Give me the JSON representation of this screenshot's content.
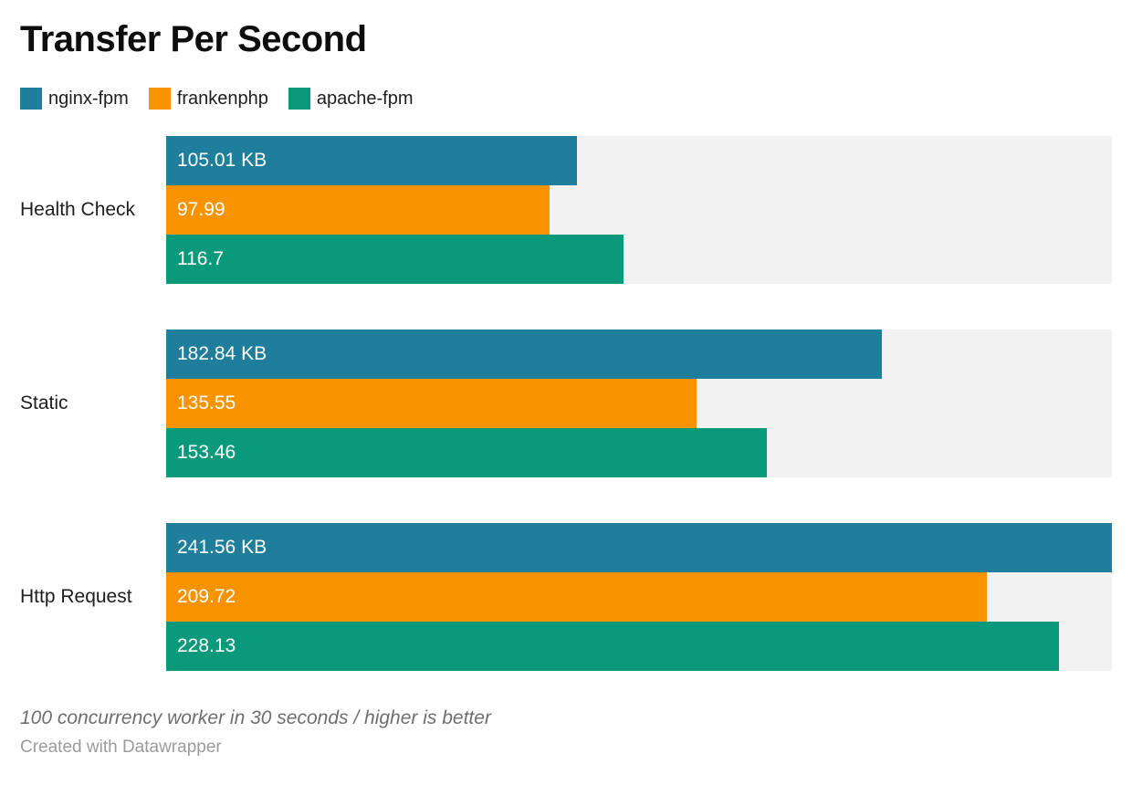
{
  "title": "Transfer Per Second",
  "legend": [
    {
      "label": "nginx-fpm",
      "color": "#1f7e9c"
    },
    {
      "label": "frankenphp",
      "color": "#f89300"
    },
    {
      "label": "apache-fpm",
      "color": "#0a9a7b"
    }
  ],
  "chart_data": {
    "type": "bar",
    "orientation": "horizontal",
    "grouped": true,
    "title": "Transfer Per Second",
    "categories": [
      "Health Check",
      "Static",
      "Http Request"
    ],
    "series": [
      {
        "name": "nginx-fpm",
        "color": "#1f7e9c",
        "values": [
          105.01,
          182.84,
          241.56
        ],
        "labels": [
          "105.01 KB",
          "182.84 KB",
          "241.56 KB"
        ]
      },
      {
        "name": "frankenphp",
        "color": "#f89300",
        "values": [
          97.99,
          135.55,
          209.72
        ],
        "labels": [
          "97.99",
          "135.55",
          "209.72"
        ]
      },
      {
        "name": "apache-fpm",
        "color": "#0a9a7b",
        "values": [
          116.7,
          153.46,
          228.13
        ],
        "labels": [
          "116.7",
          "153.46",
          "228.13"
        ]
      }
    ],
    "value_unit": "KB",
    "xlim": [
      0,
      241.56
    ],
    "track_color": "#f2f2f2",
    "legend_position": "top",
    "grid": false,
    "value_labels": "inside-left"
  },
  "footer": {
    "note": "100 concurrency worker in 30 seconds / higher is better",
    "credit": "Created with Datawrapper"
  }
}
